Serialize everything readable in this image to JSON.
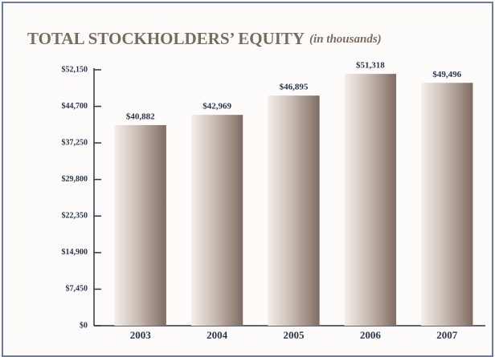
{
  "chart_data": {
    "type": "bar",
    "title": "TOTAL STOCKHOLDERS’ EQUITY",
    "subtitle": "(in thousands)",
    "categories": [
      "2003",
      "2004",
      "2005",
      "2006",
      "2007"
    ],
    "values": [
      40882,
      42969,
      46895,
      51318,
      49496
    ],
    "value_labels": [
      "$40,882",
      "$42,969",
      "$46,895",
      "$51,318",
      "$49,496"
    ],
    "color": "#8a776c",
    "ylim": [
      0,
      52150
    ],
    "yticks": [
      {
        "value": 0,
        "label": "$0"
      },
      {
        "value": 7450,
        "label": "$7,450"
      },
      {
        "value": 14900,
        "label": "$14,900"
      },
      {
        "value": 22350,
        "label": "$22,350"
      },
      {
        "value": 29800,
        "label": "$29,800"
      },
      {
        "value": 37250,
        "label": "$37,250"
      },
      {
        "value": 44700,
        "label": "$44,700"
      },
      {
        "value": 52150,
        "label": "$52,150"
      }
    ],
    "grid": false
  }
}
